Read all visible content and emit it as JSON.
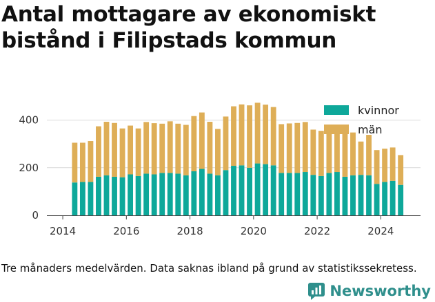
{
  "title": "Antal mottagare av ekonomiskt bistånd i Filipstads kommun",
  "caption": "Tre månaders medelvärden. Data saknas ibland på grund av statistikssekretess.",
  "brand": {
    "name": "Newsworthy",
    "icon": "newsworthy-logo-icon"
  },
  "colors": {
    "kvinnor": "#0ea89a",
    "man": "#deae57",
    "grid": "#d9d9d9",
    "axis": "#444444"
  },
  "chart_data": {
    "type": "bar",
    "stacked": true,
    "title": "Antal mottagare av ekonomiskt bistånd i Filipstads kommun",
    "xlabel": "",
    "ylabel": "",
    "ylim": [
      0,
      500
    ],
    "xlim": [
      2013.5,
      2025.25
    ],
    "y_ticks": [
      0,
      200,
      400
    ],
    "x_ticks": [
      2014,
      2016,
      2018,
      2020,
      2022,
      2024
    ],
    "grid": true,
    "legend": "top-right",
    "x": [
      2014.375,
      2014.625,
      2014.875,
      2015.125,
      2015.375,
      2015.625,
      2015.875,
      2016.125,
      2016.375,
      2016.625,
      2016.875,
      2017.125,
      2017.375,
      2017.625,
      2017.875,
      2018.125,
      2018.375,
      2018.625,
      2018.875,
      2019.125,
      2019.375,
      2019.625,
      2019.875,
      2020.125,
      2020.375,
      2020.625,
      2020.875,
      2021.125,
      2021.375,
      2021.625,
      2021.875,
      2022.125,
      2022.375,
      2022.625,
      2022.875,
      2023.125,
      2023.375,
      2023.625,
      2023.875,
      2024.125,
      2024.375,
      2024.625
    ],
    "series": [
      {
        "name": "kvinnor",
        "values": [
          138,
          140,
          140,
          162,
          168,
          162,
          160,
          172,
          165,
          175,
          172,
          178,
          178,
          175,
          168,
          185,
          195,
          175,
          168,
          190,
          208,
          210,
          200,
          218,
          215,
          210,
          178,
          178,
          178,
          182,
          170,
          165,
          178,
          182,
          162,
          168,
          170,
          168,
          132,
          140,
          145,
          128
        ]
      },
      {
        "name": "män",
        "values": [
          167,
          165,
          172,
          212,
          225,
          226,
          205,
          205,
          200,
          217,
          215,
          207,
          217,
          210,
          212,
          232,
          237,
          218,
          195,
          225,
          250,
          256,
          262,
          255,
          250,
          245,
          205,
          208,
          210,
          210,
          190,
          190,
          175,
          168,
          185,
          180,
          140,
          170,
          142,
          140,
          140,
          125
        ]
      }
    ]
  }
}
